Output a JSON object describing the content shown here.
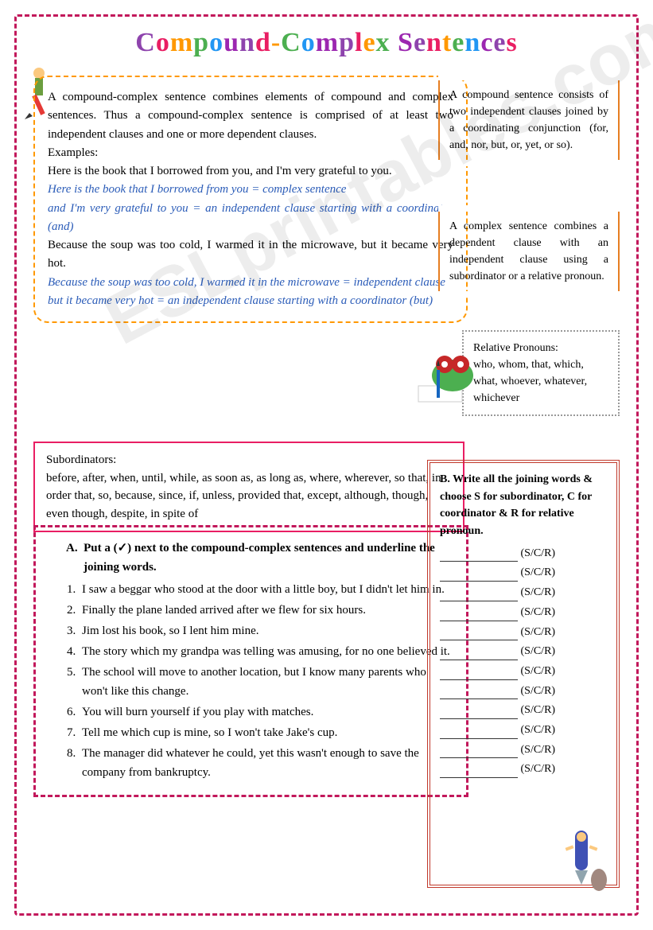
{
  "title_letters": [
    {
      "c": "C",
      "cls": "t1"
    },
    {
      "c": "o",
      "cls": "t2"
    },
    {
      "c": "m",
      "cls": "t3"
    },
    {
      "c": "p",
      "cls": "t4"
    },
    {
      "c": "o",
      "cls": "t5"
    },
    {
      "c": "u",
      "cls": "t6"
    },
    {
      "c": "n",
      "cls": "t1"
    },
    {
      "c": "d",
      "cls": "t2"
    },
    {
      "c": "-",
      "cls": "t3"
    },
    {
      "c": "C",
      "cls": "t4"
    },
    {
      "c": "o",
      "cls": "t5"
    },
    {
      "c": "m",
      "cls": "t6"
    },
    {
      "c": "p",
      "cls": "t1"
    },
    {
      "c": "l",
      "cls": "t2"
    },
    {
      "c": "e",
      "cls": "t3"
    },
    {
      "c": "x",
      "cls": "t4"
    },
    {
      "c": " ",
      "cls": "t5"
    },
    {
      "c": "S",
      "cls": "t6"
    },
    {
      "c": "e",
      "cls": "t1"
    },
    {
      "c": "n",
      "cls": "t2"
    },
    {
      "c": "t",
      "cls": "t3"
    },
    {
      "c": "e",
      "cls": "t4"
    },
    {
      "c": "n",
      "cls": "t5"
    },
    {
      "c": "c",
      "cls": "t6"
    },
    {
      "c": "e",
      "cls": "t1"
    },
    {
      "c": "s",
      "cls": "t2"
    }
  ],
  "main": {
    "p1": "A compound-complex sentence combines elements of compound and complex sentences. Thus a compound-complex sentence is comprised of at least two independent clauses and one or more dependent clauses.",
    "ex_label": "Examples:",
    "ex1": "Here is the book that I borrowed from you, and I'm very grateful to you.",
    "ex1a": "Here is the book that I borrowed from you = complex sentence",
    "ex1b": "and I'm very grateful to you = an independent clause starting with a coordinator (and)",
    "ex2": "Because the soup was too cold, I warmed it in the microwave, but it became very hot.",
    "ex2a": "Because the soup was too cold, I warmed it in the microwave = independent clause",
    "ex2b": "but it became very hot = an independent clause starting with a coordinator (but)"
  },
  "side1": "A compound sentence consists of two independent clauses joined by a coordinating conjunction (for, and, nor, but, or, yet, or so).",
  "side2": "A complex sentence combines a dependent clause with an independent clause using a subordinator or a relative pronoun.",
  "relpro": {
    "title": "Relative Pronouns:",
    "body": "who, whom, that, which, what, whoever, whatever, whichever"
  },
  "subord": {
    "title": "Subordinators:",
    "body": "before, after, when, until, while, as soon as, as long as, where, wherever, so that, in order that, so, because, since, if, unless, provided that, except, although, though, even though, despite, in spite of"
  },
  "exA": {
    "label": "A.",
    "inst": "Put a (✓) next to the compound-complex sentences and underline the joining words.",
    "items": [
      "I saw a beggar who stood at the door with a little boy, but I didn't let him in.",
      "Finally the plane landed arrived after we flew for six hours.",
      "Jim lost his book, so I lent him mine.",
      "The story which my grandpa was telling was amusing, for no one believed it.",
      "The school will move to another location, but I know many parents who won't like this change.",
      "You will burn yourself if you play with matches.",
      "Tell me which cup is mine, so I won't take Jake's cup.",
      "The manager did whatever he could, yet this wasn't enough to save the company from bankruptcy."
    ]
  },
  "exB": {
    "label": "B.",
    "inst": "Write all the joining words & choose S for subordinator, C for coordinator & R for relative pronoun.",
    "scr": "(S/C/R)",
    "count": 12
  },
  "watermark": "ESLprintables.com",
  "colors": {
    "outer_dash": "#c2185b",
    "orange_dash": "#ff9800",
    "side_border": "#e67e22",
    "relpro_dot": "#999",
    "subord_border": "#e91e63",
    "exB_border": "#c0392b",
    "blue_text": "#2b5cb8"
  }
}
